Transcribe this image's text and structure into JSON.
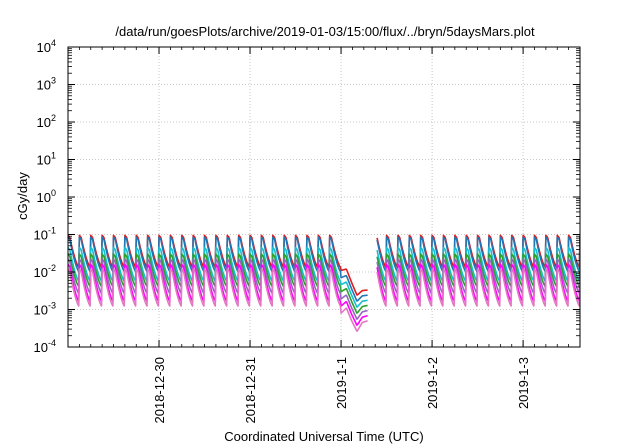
{
  "chart_data": {
    "type": "line",
    "title": "/data/run/goesPlots/archive/2019-01-03/15:00/flux/../bryn/5daysMars.plot",
    "xlabel": "Coordinated Universal Time (UTC)",
    "ylabel": "cGy/day",
    "yscale": "log",
    "ylim": [
      0.0001,
      10000
    ],
    "xlim": [
      "2018-12-29T00:00",
      "2019-01-03T15:00"
    ],
    "y_ticks": [
      {
        "value": 0.0001,
        "base": "10",
        "exp": "-4"
      },
      {
        "value": 0.001,
        "base": "10",
        "exp": "-3"
      },
      {
        "value": 0.01,
        "base": "10",
        "exp": "-2"
      },
      {
        "value": 0.1,
        "base": "10",
        "exp": "-1"
      },
      {
        "value": 1,
        "base": "10",
        "exp": "0"
      },
      {
        "value": 10,
        "base": "10",
        "exp": "1"
      },
      {
        "value": 100,
        "base": "10",
        "exp": "2"
      },
      {
        "value": 1000,
        "base": "10",
        "exp": "3"
      },
      {
        "value": 10000,
        "base": "10",
        "exp": "4"
      }
    ],
    "x_ticks": [
      {
        "value": "2018-12-30T00:00",
        "label": "2018-12-30"
      },
      {
        "value": "2018-12-31T00:00",
        "label": "2018-12-31"
      },
      {
        "value": "2019-01-01T00:00",
        "label": "2019-1-1"
      },
      {
        "value": "2019-01-02T00:00",
        "label": "2019-1-2"
      },
      {
        "value": "2019-01-03T00:00",
        "label": "2019-1-3"
      }
    ],
    "grid": true,
    "data_gap": [
      "2019-01-01T07:00",
      "2019-01-01T09:30"
    ],
    "sawtooth_period_hours": 3,
    "series": [
      {
        "color": "#e41a1c",
        "peak": 0.095,
        "trough": 0.013
      },
      {
        "color": "#1f77b4",
        "peak": 0.085,
        "trough": 0.01
      },
      {
        "color": "#17becf",
        "peak": 0.045,
        "trough": 0.0055
      },
      {
        "color": "#2ca02c",
        "peak": 0.03,
        "trough": 0.004
      },
      {
        "color": "#9467bd",
        "peak": 0.022,
        "trough": 0.0026
      },
      {
        "color": "#ff00ff",
        "peak": 0.016,
        "trough": 0.0016
      },
      {
        "color": "#e377c2",
        "peak": 0.012,
        "trough": 0.0012
      }
    ],
    "dip_event": {
      "start": "2019-01-01T00:00",
      "end": "2019-01-01T07:00",
      "red_values": [
        0.011,
        0.012,
        0.0052,
        0.0024,
        0.0032,
        0.0033
      ],
      "magenta_values": [
        0.0008,
        0.0011,
        0.0005,
        0.00026,
        0.00045,
        0.0005
      ]
    }
  }
}
